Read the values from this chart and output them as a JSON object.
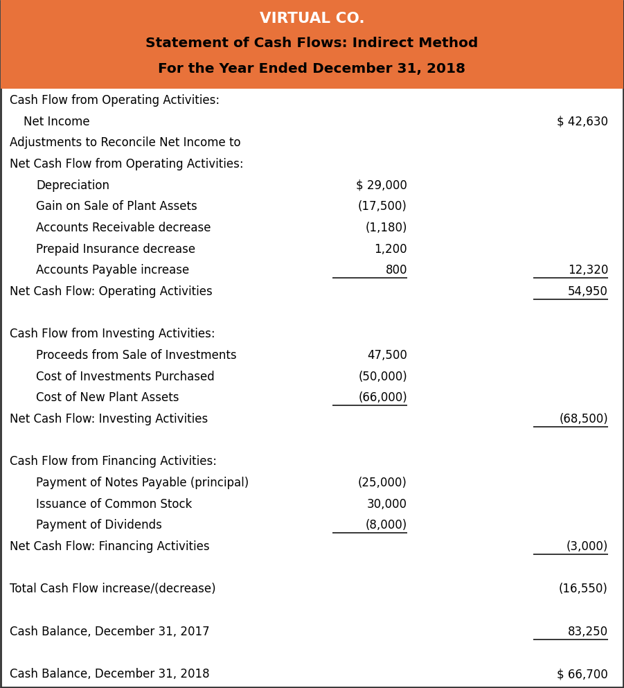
{
  "title_line1": "VIRTUAL CO.",
  "title_line2": "Statement of Cash Flows: Indirect Method",
  "title_line3": "For the Year Ended December 31, 2018",
  "header_bg": "#E8723A",
  "header_text_color1": "#FFFFFF",
  "header_text_color2": "#000000",
  "body_bg": "#FFFFFF",
  "border_color": "#333333",
  "rows": [
    {
      "label": "Cash Flow from Operating Activities:",
      "indent": 0,
      "col1": "",
      "col2": "",
      "underline_col1": false,
      "underline_col2": false
    },
    {
      "label": "Net Income",
      "indent": 1,
      "col1": "",
      "col2": "$ 42,630",
      "underline_col1": false,
      "underline_col2": false
    },
    {
      "label": "Adjustments to Reconcile Net Income to",
      "indent": 0,
      "col1": "",
      "col2": "",
      "underline_col1": false,
      "underline_col2": false
    },
    {
      "label": "Net Cash Flow from Operating Activities:",
      "indent": 0,
      "col1": "",
      "col2": "",
      "underline_col1": false,
      "underline_col2": false
    },
    {
      "label": "Depreciation",
      "indent": 2,
      "col1": "$ 29,000",
      "col2": "",
      "underline_col1": false,
      "underline_col2": false
    },
    {
      "label": "Gain on Sale of Plant Assets",
      "indent": 2,
      "col1": "(17,500)",
      "col2": "",
      "underline_col1": false,
      "underline_col2": false
    },
    {
      "label": "Accounts Receivable decrease",
      "indent": 2,
      "col1": "(1,180)",
      "col2": "",
      "underline_col1": false,
      "underline_col2": false
    },
    {
      "label": "Prepaid Insurance decrease",
      "indent": 2,
      "col1": "1,200",
      "col2": "",
      "underline_col1": false,
      "underline_col2": false
    },
    {
      "label": "Accounts Payable increase",
      "indent": 2,
      "col1": "800",
      "col2": "12,320",
      "underline_col1": true,
      "underline_col2": true
    },
    {
      "label": "Net Cash Flow: Operating Activities",
      "indent": 0,
      "col1": "",
      "col2": "54,950",
      "underline_col1": false,
      "underline_col2": true
    },
    {
      "label": "",
      "indent": 0,
      "col1": "",
      "col2": "",
      "underline_col1": false,
      "underline_col2": false
    },
    {
      "label": "Cash Flow from Investing Activities:",
      "indent": 0,
      "col1": "",
      "col2": "",
      "underline_col1": false,
      "underline_col2": false
    },
    {
      "label": "Proceeds from Sale of Investments",
      "indent": 2,
      "col1": "47,500",
      "col2": "",
      "underline_col1": false,
      "underline_col2": false
    },
    {
      "label": "Cost of Investments Purchased",
      "indent": 2,
      "col1": "(50,000)",
      "col2": "",
      "underline_col1": false,
      "underline_col2": false
    },
    {
      "label": "Cost of New Plant Assets",
      "indent": 2,
      "col1": "(66,000)",
      "col2": "",
      "underline_col1": true,
      "underline_col2": false
    },
    {
      "label": "Net Cash Flow: Investing Activities",
      "indent": 0,
      "col1": "",
      "col2": "(68,500)",
      "underline_col1": false,
      "underline_col2": true
    },
    {
      "label": "",
      "indent": 0,
      "col1": "",
      "col2": "",
      "underline_col1": false,
      "underline_col2": false
    },
    {
      "label": "Cash Flow from Financing Activities:",
      "indent": 0,
      "col1": "",
      "col2": "",
      "underline_col1": false,
      "underline_col2": false
    },
    {
      "label": "Payment of Notes Payable (principal)",
      "indent": 2,
      "col1": "(25,000)",
      "col2": "",
      "underline_col1": false,
      "underline_col2": false
    },
    {
      "label": "Issuance of Common Stock",
      "indent": 2,
      "col1": "30,000",
      "col2": "",
      "underline_col1": false,
      "underline_col2": false
    },
    {
      "label": "Payment of Dividends",
      "indent": 2,
      "col1": "(8,000)",
      "col2": "",
      "underline_col1": true,
      "underline_col2": false
    },
    {
      "label": "Net Cash Flow: Financing Activities",
      "indent": 0,
      "col1": "",
      "col2": "(3,000)",
      "underline_col1": false,
      "underline_col2": true
    },
    {
      "label": "",
      "indent": 0,
      "col1": "",
      "col2": "",
      "underline_col1": false,
      "underline_col2": false
    },
    {
      "label": "Total Cash Flow increase/(decrease)",
      "indent": 0,
      "col1": "",
      "col2": "(16,550)",
      "underline_col1": false,
      "underline_col2": false
    },
    {
      "label": "",
      "indent": 0,
      "col1": "",
      "col2": "",
      "underline_col1": false,
      "underline_col2": false
    },
    {
      "label": "Cash Balance, December 31, 2017",
      "indent": 0,
      "col1": "",
      "col2": "83,250",
      "underline_col1": false,
      "underline_col2": true
    },
    {
      "label": "",
      "indent": 0,
      "col1": "",
      "col2": "",
      "underline_col1": false,
      "underline_col2": false
    },
    {
      "label": "Cash Balance, December 31, 2018",
      "indent": 0,
      "col1": "",
      "col2": "$ 66,700",
      "underline_col1": false,
      "underline_col2": false
    }
  ],
  "figwidth": 9.01,
  "figheight": 9.93,
  "dpi": 100
}
